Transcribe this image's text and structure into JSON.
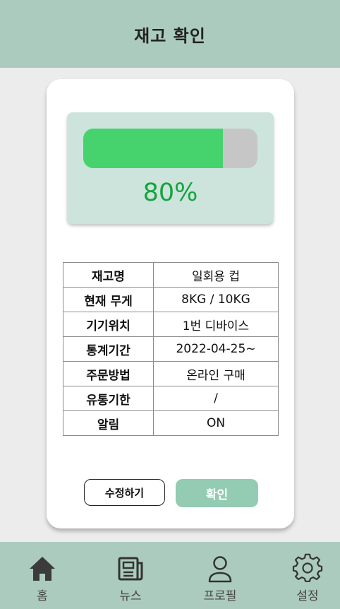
{
  "header": {
    "title": "재고 확인"
  },
  "gauge": {
    "percent": 80,
    "percent_label": "80%",
    "fill_color": "#46d36d",
    "track_color": "#c6c6c6"
  },
  "info": {
    "rows": [
      {
        "key": "재고명",
        "value": "일회용 컵"
      },
      {
        "key": "현재 무게",
        "value": "8KG / 10KG"
      },
      {
        "key": "기기위치",
        "value": "1번 디바이스"
      },
      {
        "key": "통계기간",
        "value": "2022-04-25~"
      },
      {
        "key": "주문방법",
        "value": "온라인 구매"
      },
      {
        "key": "유통기한",
        "value": "/"
      },
      {
        "key": "알림",
        "value": "ON"
      }
    ]
  },
  "actions": {
    "edit_label": "수정하기",
    "confirm_label": "확인"
  },
  "nav": {
    "items": [
      {
        "label": "홈",
        "icon": "home-icon"
      },
      {
        "label": "뉴스",
        "icon": "news-icon"
      },
      {
        "label": "프로필",
        "icon": "profile-icon"
      },
      {
        "label": "설정",
        "icon": "settings-icon"
      }
    ]
  },
  "colors": {
    "header_bg": "#abcbbe",
    "accent": "#93cbb3",
    "percent_text": "#16a33f"
  }
}
